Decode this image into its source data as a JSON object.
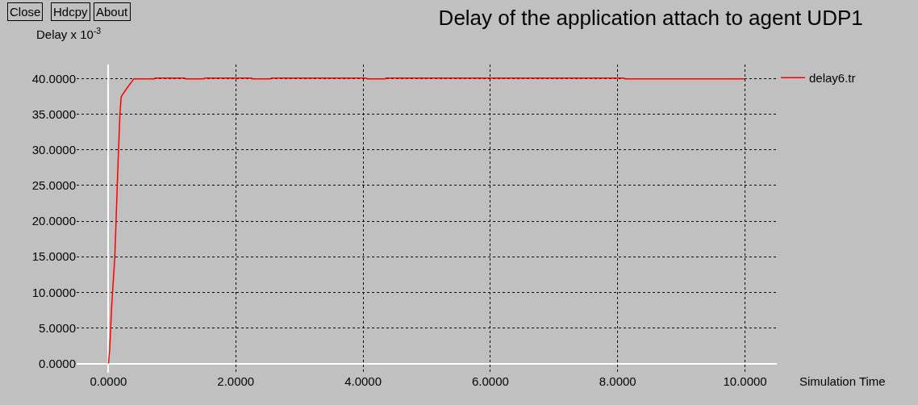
{
  "chart_data": {
    "type": "line",
    "title": "Delay of the application attach to agent UDP1",
    "xlabel": "Simulation Time",
    "ylabel": "Delay x 10$^{-3}$",
    "annotations": [
      "Close",
      "Hdcpy",
      "About"
    ],
    "x": [
      0,
      0.02,
      0.05,
      0.1,
      0.15,
      0.18,
      0.2,
      0.3,
      0.4,
      0.72,
      0.73,
      1.2,
      1.21,
      1.5,
      1.51,
      2.25,
      2.26,
      2.55,
      2.56,
      4.05,
      4.06,
      4.35,
      4.36,
      8.1,
      8.11,
      10
    ],
    "series": [
      {
        "name": "delay6.tr",
        "color": "#ff0000",
        "values": [
          0,
          2,
          8,
          15,
          28,
          35,
          37.5,
          38.8,
          40,
          40,
          40.1,
          40.1,
          40,
          40,
          40.1,
          40.1,
          40,
          40,
          40.1,
          40.1,
          40,
          40,
          40.1,
          40.1,
          40,
          40
        ]
      }
    ],
    "xlim": [
      -0.5,
      10.5
    ],
    "ylim": [
      -1.3,
      42
    ],
    "xticks": [
      {
        "value": 0,
        "label": "0.0000"
      },
      {
        "value": 2,
        "label": "2.0000"
      },
      {
        "value": 4,
        "label": "4.0000"
      },
      {
        "value": 6,
        "label": "6.0000"
      },
      {
        "value": 8,
        "label": "8.0000"
      },
      {
        "value": 10,
        "label": "10.0000"
      }
    ],
    "yticks": [
      {
        "value": 0,
        "label": "0.0000"
      },
      {
        "value": 5,
        "label": "5.0000"
      },
      {
        "value": 10,
        "label": "10.0000"
      },
      {
        "value": 15,
        "label": "15.0000"
      },
      {
        "value": 20,
        "label": "20.0000"
      },
      {
        "value": 25,
        "label": "25.0000"
      },
      {
        "value": 30,
        "label": "30.0000"
      },
      {
        "value": 35,
        "label": "35.0000"
      },
      {
        "value": 40,
        "label": "40.0000"
      }
    ],
    "grid": true,
    "legend": "top right",
    "marker": "none",
    "line_style": "solid"
  }
}
